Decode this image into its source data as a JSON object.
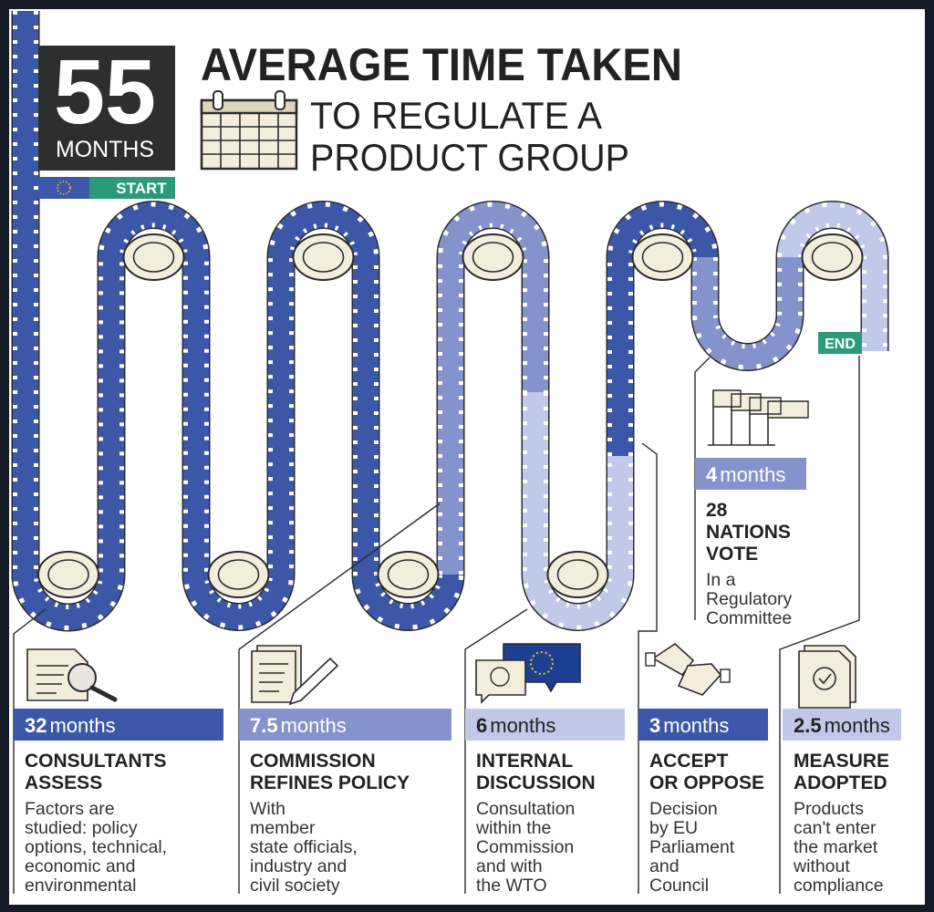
{
  "header": {
    "number": "55",
    "unit": "MONTHS",
    "start": "START",
    "title": [
      "AVERAGE TIME TAKEN",
      "TO REGULATE A",
      "PRODUCT GROUP"
    ]
  },
  "end": "END",
  "stages": [
    {
      "value": 32,
      "unit": "months",
      "title": [
        "CONSULTANTS",
        "ASSESS"
      ],
      "description": [
        "Factors are",
        "studied: policy",
        "options, technical,",
        "economic and",
        "environmental"
      ]
    },
    {
      "value": 7.5,
      "unit": "months",
      "title": [
        "COMMISSION",
        "REFINES POLICY"
      ],
      "description": [
        "With",
        "member",
        "state officials,",
        "industry and",
        "civil society"
      ]
    },
    {
      "value": 6,
      "unit": "months",
      "title": [
        "INTERNAL",
        "DISCUSSION"
      ],
      "description": [
        "Consultation",
        "within the",
        "Commission",
        "and with",
        "the WTO"
      ]
    },
    {
      "value": 4,
      "unit": "months",
      "title": [
        "28",
        "NATIONS",
        "VOTE"
      ],
      "description": [
        "In a",
        "Regulatory",
        "Committee"
      ]
    },
    {
      "value": 3,
      "unit": "months",
      "title": [
        "ACCEPT",
        "OR OPPOSE"
      ],
      "description": [
        "Decision",
        "by EU",
        "Parliament",
        "and",
        "Council"
      ]
    },
    {
      "value": 2.5,
      "unit": "months",
      "title": [
        "MEASURE",
        "ADOPTED"
      ],
      "description": [
        "Products",
        "can't enter",
        "the market",
        "without",
        "compliance"
      ]
    }
  ]
}
